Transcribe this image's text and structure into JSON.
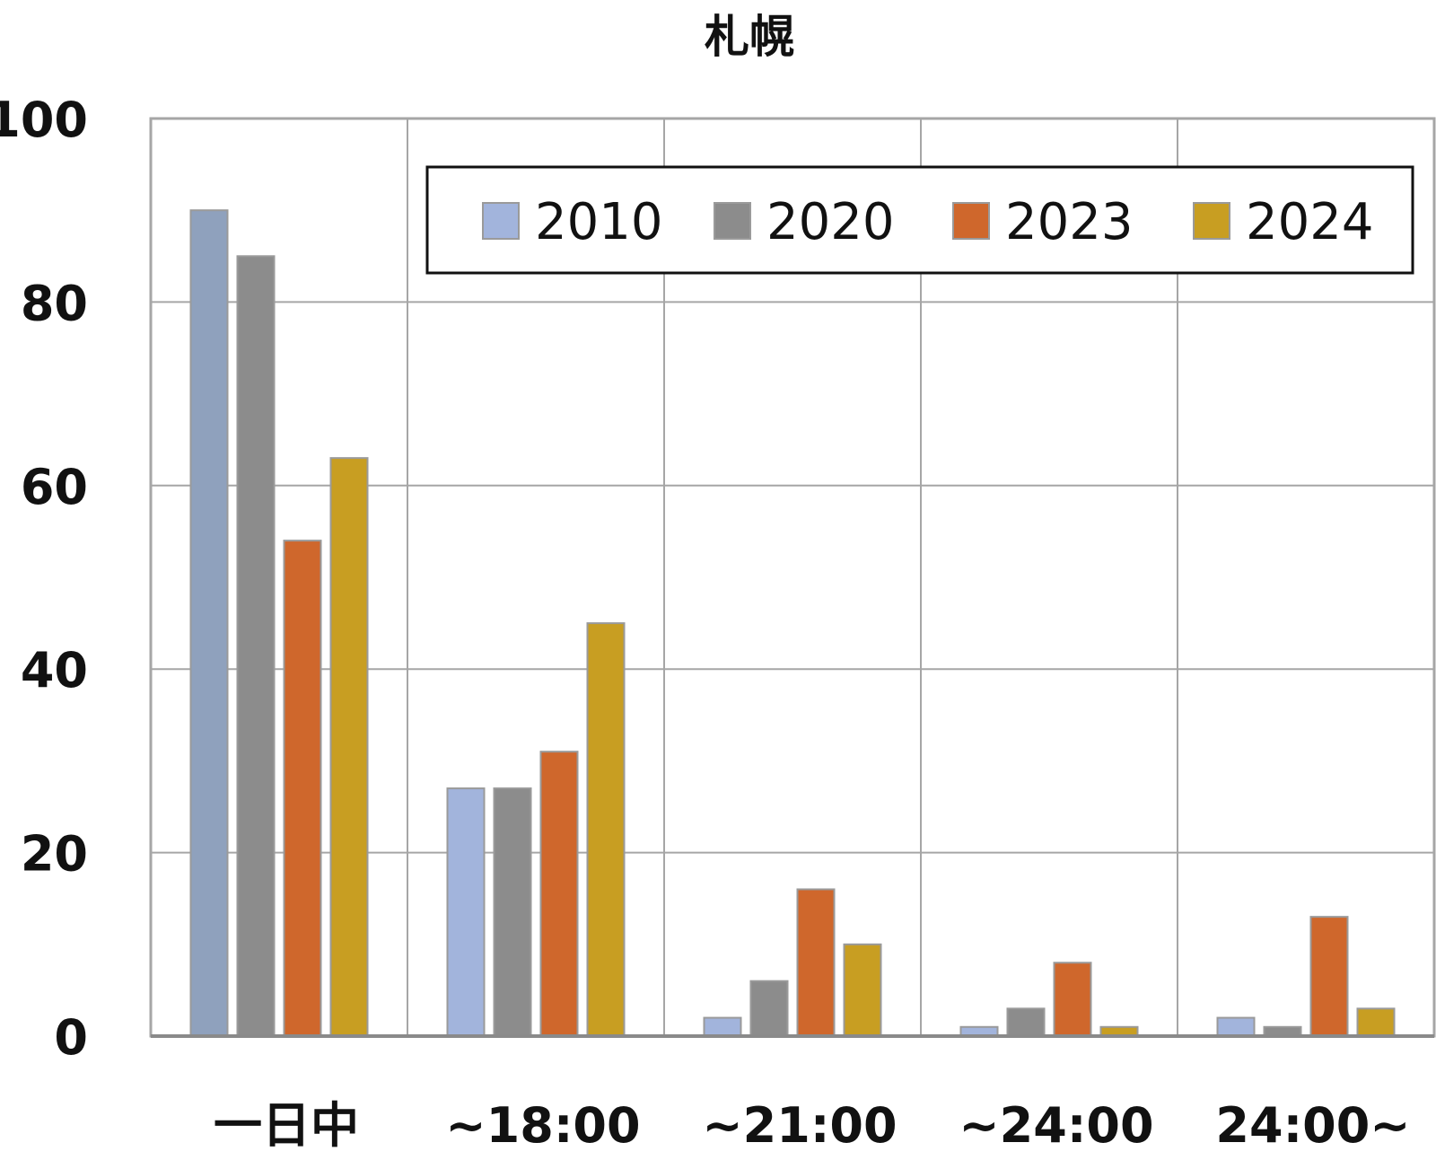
{
  "chart_data": {
    "type": "bar",
    "title": "札幌",
    "xlabel": "",
    "ylabel": "",
    "categories": [
      "一日中",
      "~18:00",
      "~21:00",
      "~24:00",
      "24:00~"
    ],
    "series": [
      {
        "name": "2010",
        "color": "#a2b4dc",
        "values": [
          90,
          27,
          2,
          1,
          2
        ]
      },
      {
        "name": "2020",
        "color": "#8c8c8c",
        "values": [
          85,
          27,
          6,
          3,
          1
        ]
      },
      {
        "name": "2023",
        "color": "#cf672c",
        "values": [
          54,
          31,
          16,
          8,
          13
        ]
      },
      {
        "name": "2024",
        "color": "#c89e22",
        "values": [
          63,
          45,
          10,
          1,
          3
        ]
      }
    ],
    "ylim": [
      0,
      100
    ],
    "yticks": [
      0,
      20,
      40,
      60,
      80,
      100
    ],
    "grid": true,
    "legend_position": "top-right"
  }
}
